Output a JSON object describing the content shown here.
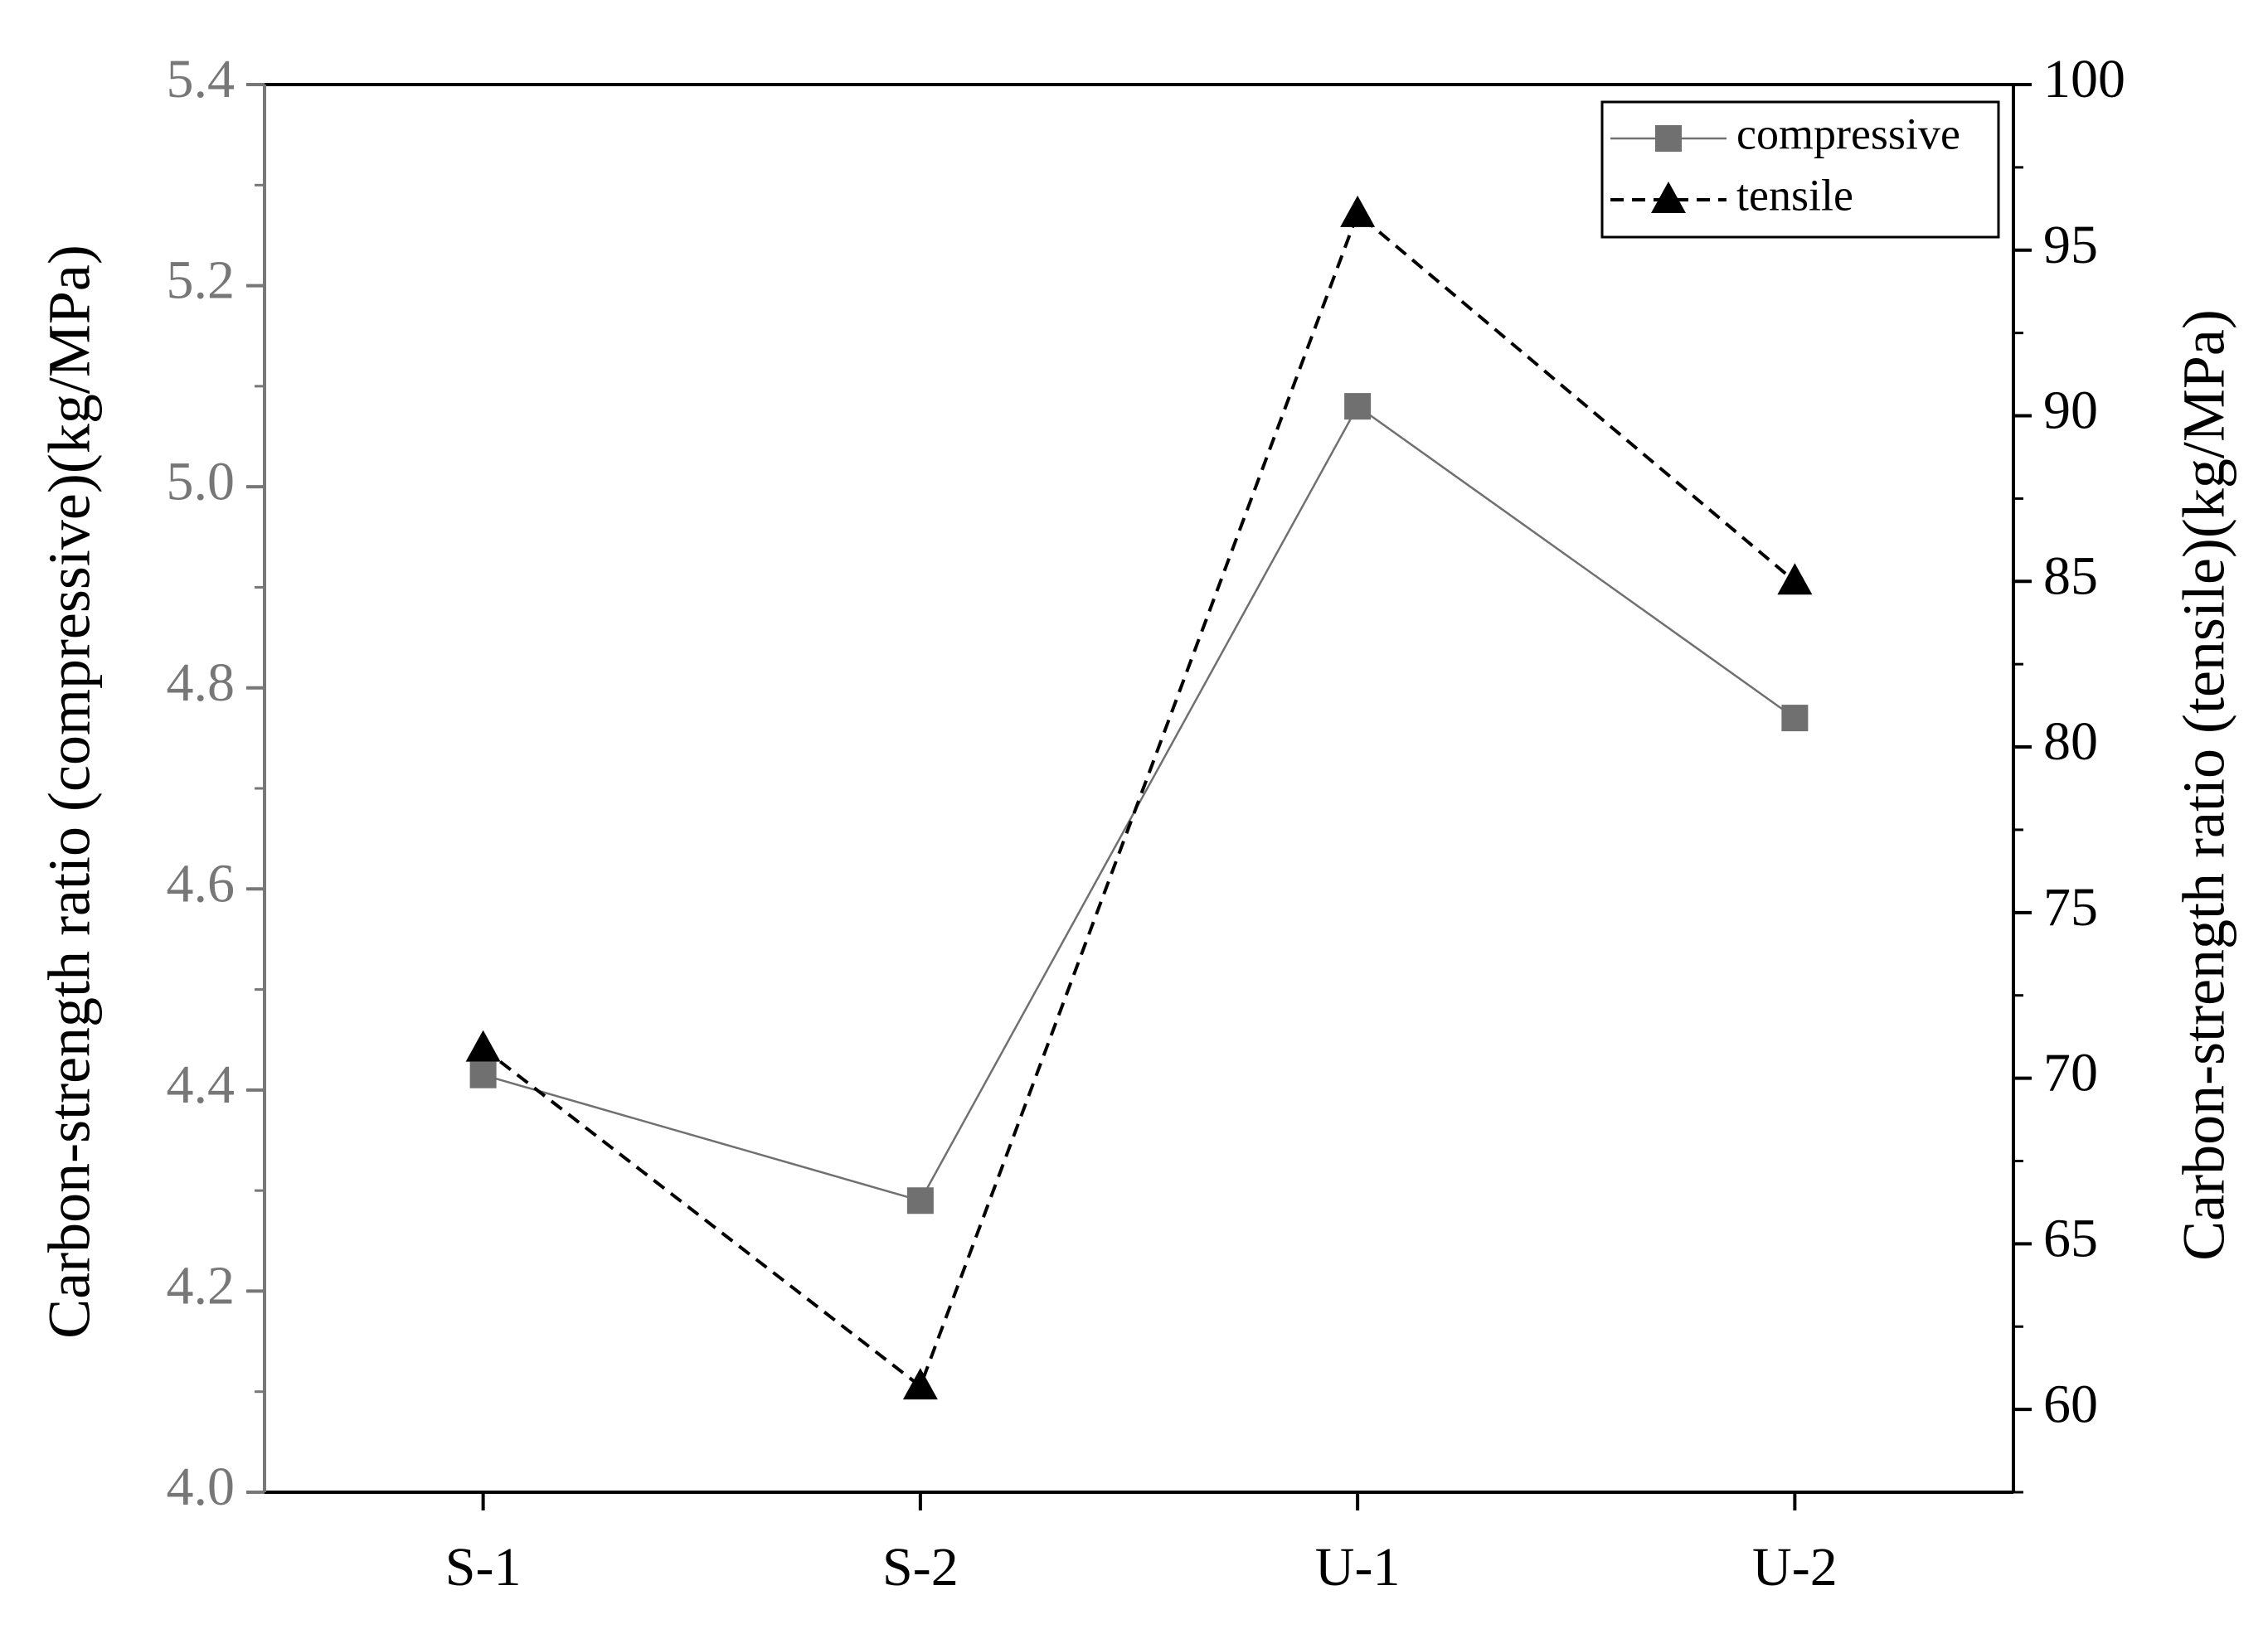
{
  "chart_data": {
    "type": "line",
    "categories": [
      "S-1",
      "S-2",
      "U-1",
      "U-2"
    ],
    "series": [
      {
        "name": "compressive",
        "color": "#707070",
        "marker": "square",
        "line_style": "solid",
        "axis": "y",
        "values": [
          4.415,
          4.29,
          5.08,
          4.77
        ]
      },
      {
        "name": "tensile",
        "color": "#000000",
        "marker": "triangle",
        "line_style": "dashed",
        "axis": "y2",
        "values": [
          70.9,
          60.7,
          96.1,
          85.0
        ]
      }
    ],
    "y_label": "Carbon-strength ratio (compressive)(kg/MPa)",
    "y2_label": "Carbon-strength ratio (tensile)(kg/MPa)",
    "ylim": [
      4.0,
      5.4
    ],
    "yticks": [
      {
        "value": 4.0,
        "label": "4.0"
      },
      4.2,
      4.4,
      4.6,
      4.8,
      {
        "value": 5.0,
        "label": "5.0"
      },
      5.2,
      5.4
    ],
    "y2lim": [
      57.5,
      100
    ],
    "y2ticks": [
      60,
      65,
      70,
      75,
      80,
      85,
      90,
      95,
      100
    ],
    "y_axis_color": "#777777",
    "grid": false,
    "legend": "top-right"
  }
}
